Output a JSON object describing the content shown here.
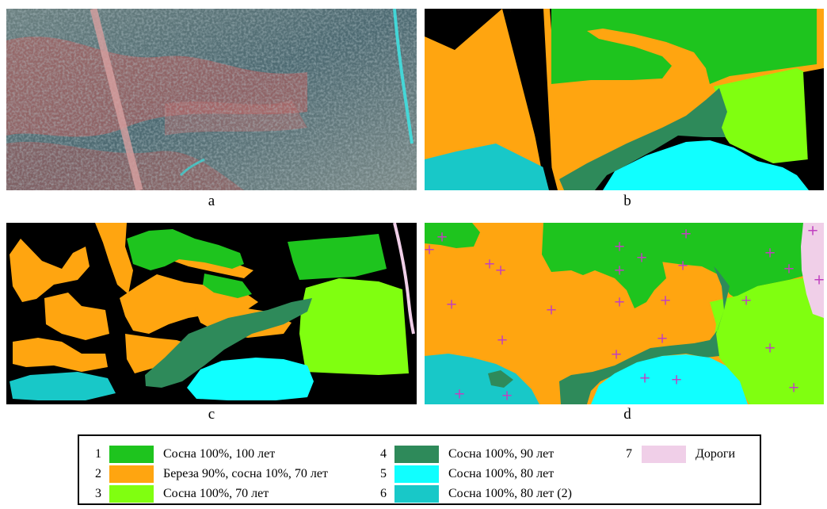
{
  "panels": [
    {
      "label": "a"
    },
    {
      "label": "b"
    },
    {
      "label": "c"
    },
    {
      "label": "d"
    }
  ],
  "colors": {
    "c1": "#1ec41e",
    "c2": "#ffa510",
    "c3": "#80ff10",
    "c4": "#2e8a5a",
    "c5": "#10ffff",
    "c6": "#18c8c8",
    "c7": "#f0cfe8",
    "marker": "#c040c0",
    "bg_black": "#000000"
  },
  "legend": {
    "items": [
      {
        "num": "1",
        "text": "Сосна 100%, 100 лет",
        "color_key": "c1"
      },
      {
        "num": "2",
        "text": "Береза 90%, сосна 10%, 70 лет",
        "color_key": "c2"
      },
      {
        "num": "3",
        "text": "Сосна 100%, 70 лет",
        "color_key": "c3"
      },
      {
        "num": "4",
        "text": "Сосна 100%, 90 лет",
        "color_key": "c4"
      },
      {
        "num": "5",
        "text": "Сосна 100%, 80 лет",
        "color_key": "c5"
      },
      {
        "num": "6",
        "text": "Сосна 100%, 80 лет (2)",
        "color_key": "c6"
      },
      {
        "num": "7",
        "text": "Дороги",
        "color_key": "c7"
      }
    ]
  },
  "markers": {
    "symbol": "+",
    "count": 27
  }
}
